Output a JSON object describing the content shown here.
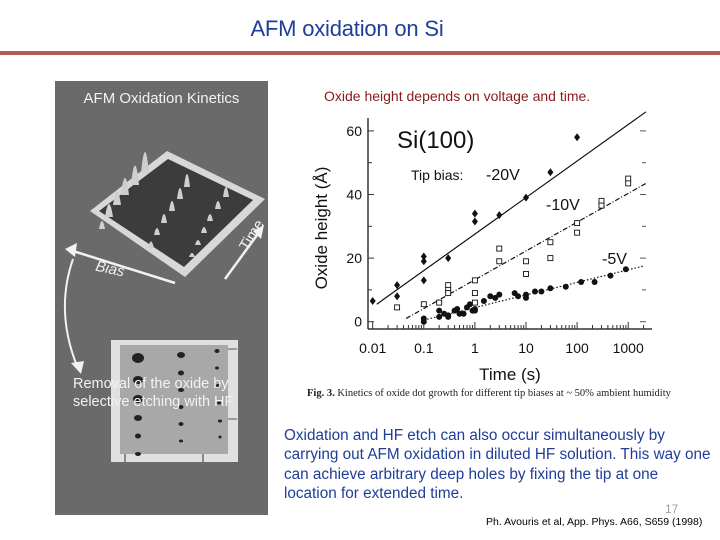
{
  "slide": {
    "title": "AFM oxidation on Si",
    "page_number": "17",
    "colors": {
      "title": "#1f3d99",
      "rule": "#b55a55",
      "subtitle": "#8b1a1a",
      "body_text": "#1f3d99",
      "panel_bg": "#6a6a6a"
    }
  },
  "left_panel": {
    "title": "AFM Oxidation Kinetics",
    "axis_time": "Time",
    "axis_bias": "Bias",
    "removal_text_line1": "Removal of the oxide by",
    "removal_text_line2": "selective etching with HF"
  },
  "right": {
    "subtitle": "Oxide height depends on voltage and time.",
    "caption_bold": "Fig. 3.",
    "caption_text": " Kinetics of oxide dot growth for different tip biases at ~ 50% ambient humidity",
    "body_text": "Oxidation and HF etch can also occur simultaneously by carrying out AFM oxidation in diluted HF solution. This way one can achieve arbitrary deep holes by fixing the tip at one location for extended time.",
    "reference": "Ph. Avouris et al, App. Phys. A66, S659 (1998)"
  },
  "chart_data": {
    "type": "scatter",
    "title": "Si(100)",
    "annotation": "Tip bias:",
    "xlabel": "Time (s)",
    "ylabel": "Oxide height (Å)",
    "xscale": "log",
    "xlim": [
      0.008,
      3000
    ],
    "ylim": [
      -3,
      65
    ],
    "xticks": [
      "0.01",
      "0.1",
      "1",
      "10",
      "100",
      "1000"
    ],
    "yticks": [
      "0",
      "20",
      "40",
      "60"
    ],
    "grid": false,
    "series": [
      {
        "name": "-20V",
        "marker": "filled-diamond",
        "fit": "solid",
        "points": [
          [
            0.01,
            6.5
          ],
          [
            0.03,
            11.5
          ],
          [
            0.03,
            8
          ],
          [
            0.1,
            20.5
          ],
          [
            0.1,
            19
          ],
          [
            0.1,
            13
          ],
          [
            0.3,
            20
          ],
          [
            1,
            34
          ],
          [
            1,
            31.5
          ],
          [
            3,
            33.5
          ],
          [
            10,
            39
          ],
          [
            30,
            47
          ],
          [
            100,
            58
          ]
        ],
        "fit_line": [
          [
            0.012,
            5.5
          ],
          [
            2500,
            66
          ]
        ]
      },
      {
        "name": "-10V",
        "marker": "open-square",
        "fit": "dash-dot",
        "points": [
          [
            0.03,
            4.5
          ],
          [
            0.1,
            5.5
          ],
          [
            0.2,
            6
          ],
          [
            0.3,
            11.5
          ],
          [
            0.3,
            10
          ],
          [
            0.3,
            9
          ],
          [
            1,
            13
          ],
          [
            1,
            9
          ],
          [
            1,
            6
          ],
          [
            3,
            23
          ],
          [
            3,
            19
          ],
          [
            10,
            19
          ],
          [
            10,
            15
          ],
          [
            30,
            25
          ],
          [
            30,
            20
          ],
          [
            100,
            31
          ],
          [
            100,
            28
          ],
          [
            300,
            38
          ],
          [
            300,
            36.5
          ],
          [
            1000,
            45
          ],
          [
            1000,
            43.5
          ]
        ],
        "fit_line": [
          [
            0.045,
            1
          ],
          [
            2500,
            43.5
          ]
        ]
      },
      {
        "name": "-5V",
        "marker": "filled-circle",
        "fit": "dotted",
        "points": [
          [
            0.1,
            1
          ],
          [
            0.1,
            0
          ],
          [
            0.2,
            3.5
          ],
          [
            0.2,
            1.5
          ],
          [
            0.25,
            2.5
          ],
          [
            0.3,
            2
          ],
          [
            0.3,
            1.5
          ],
          [
            0.4,
            3.5
          ],
          [
            0.45,
            4
          ],
          [
            0.5,
            2.5
          ],
          [
            0.6,
            2.5
          ],
          [
            0.7,
            4.5
          ],
          [
            0.8,
            5.5
          ],
          [
            0.9,
            3.5
          ],
          [
            1,
            4
          ],
          [
            1,
            3.5
          ],
          [
            1.5,
            6.5
          ],
          [
            2,
            8
          ],
          [
            2.5,
            7.5
          ],
          [
            3,
            8.5
          ],
          [
            6,
            9
          ],
          [
            7,
            8
          ],
          [
            10,
            8.5
          ],
          [
            10,
            7.5
          ],
          [
            15,
            9.5
          ],
          [
            20,
            9.5
          ],
          [
            30,
            10.5
          ],
          [
            60,
            11
          ],
          [
            120,
            12.5
          ],
          [
            220,
            12.5
          ],
          [
            450,
            14.5
          ],
          [
            900,
            16.5
          ]
        ],
        "fit_line": [
          [
            0.1,
            0.5
          ],
          [
            2000,
            17.5
          ]
        ]
      }
    ]
  }
}
